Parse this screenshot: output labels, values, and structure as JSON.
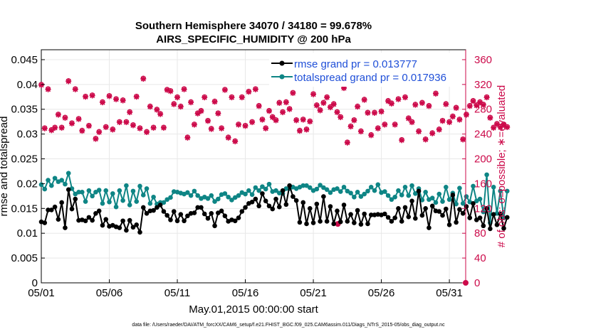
{
  "chart_data": {
    "type": "line",
    "title_line1": "Southern Hemisphere 34070 / 34180 = 99.678%",
    "title_line2": "AIRS_SPECIFIC_HUMIDITY @ 200 hPa",
    "xlabel": "May.01,2015 00:00:00 start",
    "ylabel_left": "rmse and totalspread",
    "ylabel_right": "# of obs: o=possible; ∗=evaluated",
    "footer": "data file: /Users/raeder/DAI/ATM_forcXX/CAM6_setup/f.e21.FHIST_BGC.f09_025.CAM6assim.011/Diags_NTrS_2015-05/obs_diag_output.nc",
    "xlim": [
      0,
      31.2
    ],
    "x_ticks": [
      0,
      5,
      10,
      15,
      20,
      25,
      30
    ],
    "x_tick_labels": [
      "05/01",
      "05/06",
      "05/11",
      "05/16",
      "05/21",
      "05/26",
      "05/31"
    ],
    "ylim_left": [
      0,
      0.047
    ],
    "y_ticks_left": [
      "0",
      "0.005",
      "0.01",
      "0.015",
      "0.02",
      "0.025",
      "0.03",
      "0.035",
      "0.04",
      "0.045"
    ],
    "ylim_right": [
      0,
      376
    ],
    "y_ticks_right": [
      "0",
      "40",
      "80",
      "120",
      "160",
      "200",
      "240",
      "280",
      "320",
      "360"
    ],
    "grid": true,
    "legend_position": "top-right",
    "colors": {
      "rmse": "#000000",
      "spread": "#0e8585",
      "obs": "#cc0a4a"
    },
    "series": [
      {
        "name": "rmse grand pr = 0.013777",
        "key": "rmse",
        "values": [
          0.0123,
          0.0121,
          0.0147,
          0.0147,
          0.0153,
          0.0128,
          0.0162,
          0.0111,
          0.0188,
          0.0149,
          0.0169,
          0.0126,
          0.0127,
          0.0125,
          0.0132,
          0.0126,
          0.014,
          0.0145,
          0.0116,
          0.0128,
          0.0114,
          0.0116,
          0.0113,
          0.0111,
          0.0125,
          0.0106,
          0.0126,
          0.0112,
          0.0117,
          0.0102,
          0.0152,
          0.014,
          0.0145,
          0.0146,
          0.0152,
          0.0157,
          0.0144,
          0.0136,
          0.0127,
          0.0144,
          0.0125,
          0.0138,
          0.0125,
          0.0135,
          0.014,
          0.0141,
          0.0152,
          0.0152,
          0.0139,
          0.013,
          0.014,
          0.0115,
          0.0141,
          0.0145,
          0.0135,
          0.0124,
          0.0127,
          0.0125,
          0.0131,
          0.0144,
          0.0152,
          0.016,
          0.0163,
          0.0169,
          0.0155,
          0.018,
          0.0165,
          0.0155,
          0.0149,
          0.0169,
          0.0153,
          0.0186,
          0.0158,
          0.0196,
          0.0174,
          0.0166,
          0.0122,
          0.0162,
          0.0119,
          0.015,
          0.0121,
          0.0159,
          0.0124,
          0.0174,
          0.0124,
          0.0154,
          0.0119,
          0.0145,
          0.0123,
          0.0157,
          0.0124,
          0.0138,
          0.0121,
          0.0146,
          0.0118,
          0.0139,
          0.0119,
          0.0137,
          0.0137,
          0.0138,
          0.0137,
          0.0139,
          0.0132,
          0.0124,
          0.0131,
          0.015,
          0.0124,
          0.0152,
          0.0133,
          0.0165,
          0.013,
          0.0185,
          0.0136,
          0.015,
          0.0111,
          0.0155,
          0.0145,
          0.0144,
          0.0136,
          0.0149,
          0.0117,
          0.0177,
          0.0122,
          0.0148,
          0.014,
          0.0154,
          0.0131,
          0.016,
          0.0127,
          0.0131,
          0.0115,
          0.015,
          0.0109,
          0.0138,
          0.0117,
          0.0139,
          0.011,
          0.0132
        ]
      },
      {
        "name": "totalspread grand pr = 0.017936",
        "key": "spread",
        "values": [
          0.0198,
          0.0189,
          0.0207,
          0.0196,
          0.0211,
          0.0204,
          0.0207,
          0.0199,
          0.0221,
          0.019,
          0.0179,
          0.0183,
          0.0183,
          0.0164,
          0.0186,
          0.0175,
          0.0183,
          0.0187,
          0.016,
          0.0186,
          0.0163,
          0.018,
          0.0153,
          0.0186,
          0.0166,
          0.0196,
          0.0157,
          0.0185,
          0.0164,
          0.0195,
          0.0177,
          0.019,
          0.016,
          0.0173,
          0.0159,
          0.0162,
          0.0162,
          0.0168,
          0.0172,
          0.0184,
          0.0183,
          0.0181,
          0.0179,
          0.0182,
          0.0176,
          0.0185,
          0.0176,
          0.017,
          0.0173,
          0.017,
          0.0176,
          0.0164,
          0.0169,
          0.0178,
          0.018,
          0.0173,
          0.0167,
          0.0172,
          0.0176,
          0.0182,
          0.0179,
          0.0186,
          0.0178,
          0.0192,
          0.0186,
          0.0194,
          0.0189,
          0.0199,
          0.0184,
          0.0186,
          0.0181,
          0.018,
          0.019,
          0.019,
          0.0193,
          0.019,
          0.0193,
          0.0196,
          0.0196,
          0.0192,
          0.0186,
          0.0189,
          0.0197,
          0.0192,
          0.0188,
          0.0182,
          0.0188,
          0.019,
          0.0184,
          0.0193,
          0.0185,
          0.0181,
          0.0173,
          0.0183,
          0.0174,
          0.0179,
          0.0185,
          0.0193,
          0.0186,
          0.0198,
          0.0182,
          0.0184,
          0.0176,
          0.0168,
          0.0173,
          0.0186,
          0.0177,
          0.0193,
          0.0176,
          0.0196,
          0.018,
          0.019,
          0.0167,
          0.0183,
          0.0168,
          0.0171,
          0.0162,
          0.0179,
          0.0164,
          0.0193,
          0.0168,
          0.0181,
          0.0159,
          0.0191,
          0.016,
          0.0174,
          0.0163,
          0.0195,
          0.0165,
          0.0169,
          0.0143,
          0.0218,
          0.0121,
          0.0193,
          0.014,
          0.0185,
          0.0131,
          0.0185
        ]
      },
      {
        "name": "possible",
        "key": "obs_possible",
        "values": [
          320,
          250,
          313,
          247,
          251,
          272,
          251,
          267,
          326,
          258,
          313,
          265,
          246,
          301,
          254,
          303,
          233,
          244,
          292,
          252,
          302,
          248,
          297,
          260,
          295,
          260,
          276,
          255,
          301,
          250,
          330,
          244,
          285,
          251,
          280,
          273,
          251,
          312,
          310,
          289,
          300,
          285,
          313,
          235,
          292,
          256,
          274,
          278,
          300,
          262,
          249,
          293,
          274,
          250,
          312,
          235,
          300,
          229,
          256,
          300,
          254,
          309,
          260,
          313,
          286,
          264,
          250,
          278,
          268,
          263,
          291,
          276,
          292,
          281,
          307,
          263,
          246,
          264,
          248,
          261,
          305,
          287,
          279,
          291,
          300,
          284,
          289,
          276,
          268,
          315,
          227,
          253,
          263,
          285,
          245,
          296,
          275,
          239,
          275,
          250,
          277,
          256,
          294,
          290,
          256,
          297,
          231,
          300,
          266,
          260,
          288,
          245,
          291,
          232,
          286,
          242,
          306,
          248,
          262,
          289,
          260,
          269,
          283,
          264,
          232,
          272,
          286,
          294,
          287,
          292,
          288,
          300,
          267,
          251,
          257,
          252,
          256,
          252
        ]
      },
      {
        "name": "evaluated",
        "key": "obs_evaluated",
        "values": [
          319,
          249,
          312,
          246,
          250,
          271,
          250,
          266,
          325,
          257,
          312,
          264,
          245,
          300,
          253,
          302,
          232,
          243,
          291,
          251,
          301,
          247,
          296,
          259,
          294,
          259,
          275,
          254,
          300,
          249,
          329,
          243,
          284,
          250,
          279,
          272,
          250,
          311,
          309,
          288,
          299,
          284,
          312,
          234,
          291,
          255,
          273,
          277,
          299,
          261,
          248,
          292,
          273,
          249,
          311,
          234,
          299,
          228,
          255,
          299,
          253,
          308,
          259,
          312,
          285,
          263,
          249,
          277,
          267,
          262,
          290,
          275,
          291,
          280,
          306,
          262,
          245,
          263,
          247,
          260,
          304,
          286,
          278,
          290,
          299,
          283,
          288,
          275,
          267,
          314,
          226,
          252,
          262,
          284,
          244,
          295,
          274,
          238,
          274,
          249,
          276,
          255,
          293,
          289,
          255,
          296,
          230,
          299,
          265,
          259,
          287,
          244,
          290,
          231,
          285,
          241,
          305,
          247,
          261,
          288,
          259,
          268,
          282,
          263,
          231,
          271,
          285,
          293,
          286,
          291,
          287,
          299,
          266,
          250,
          256,
          251,
          255,
          251
        ]
      }
    ],
    "extra_obs_points": [
      {
        "x": 21.8,
        "y": 95
      },
      {
        "x": 31.2,
        "y": 0
      }
    ]
  }
}
